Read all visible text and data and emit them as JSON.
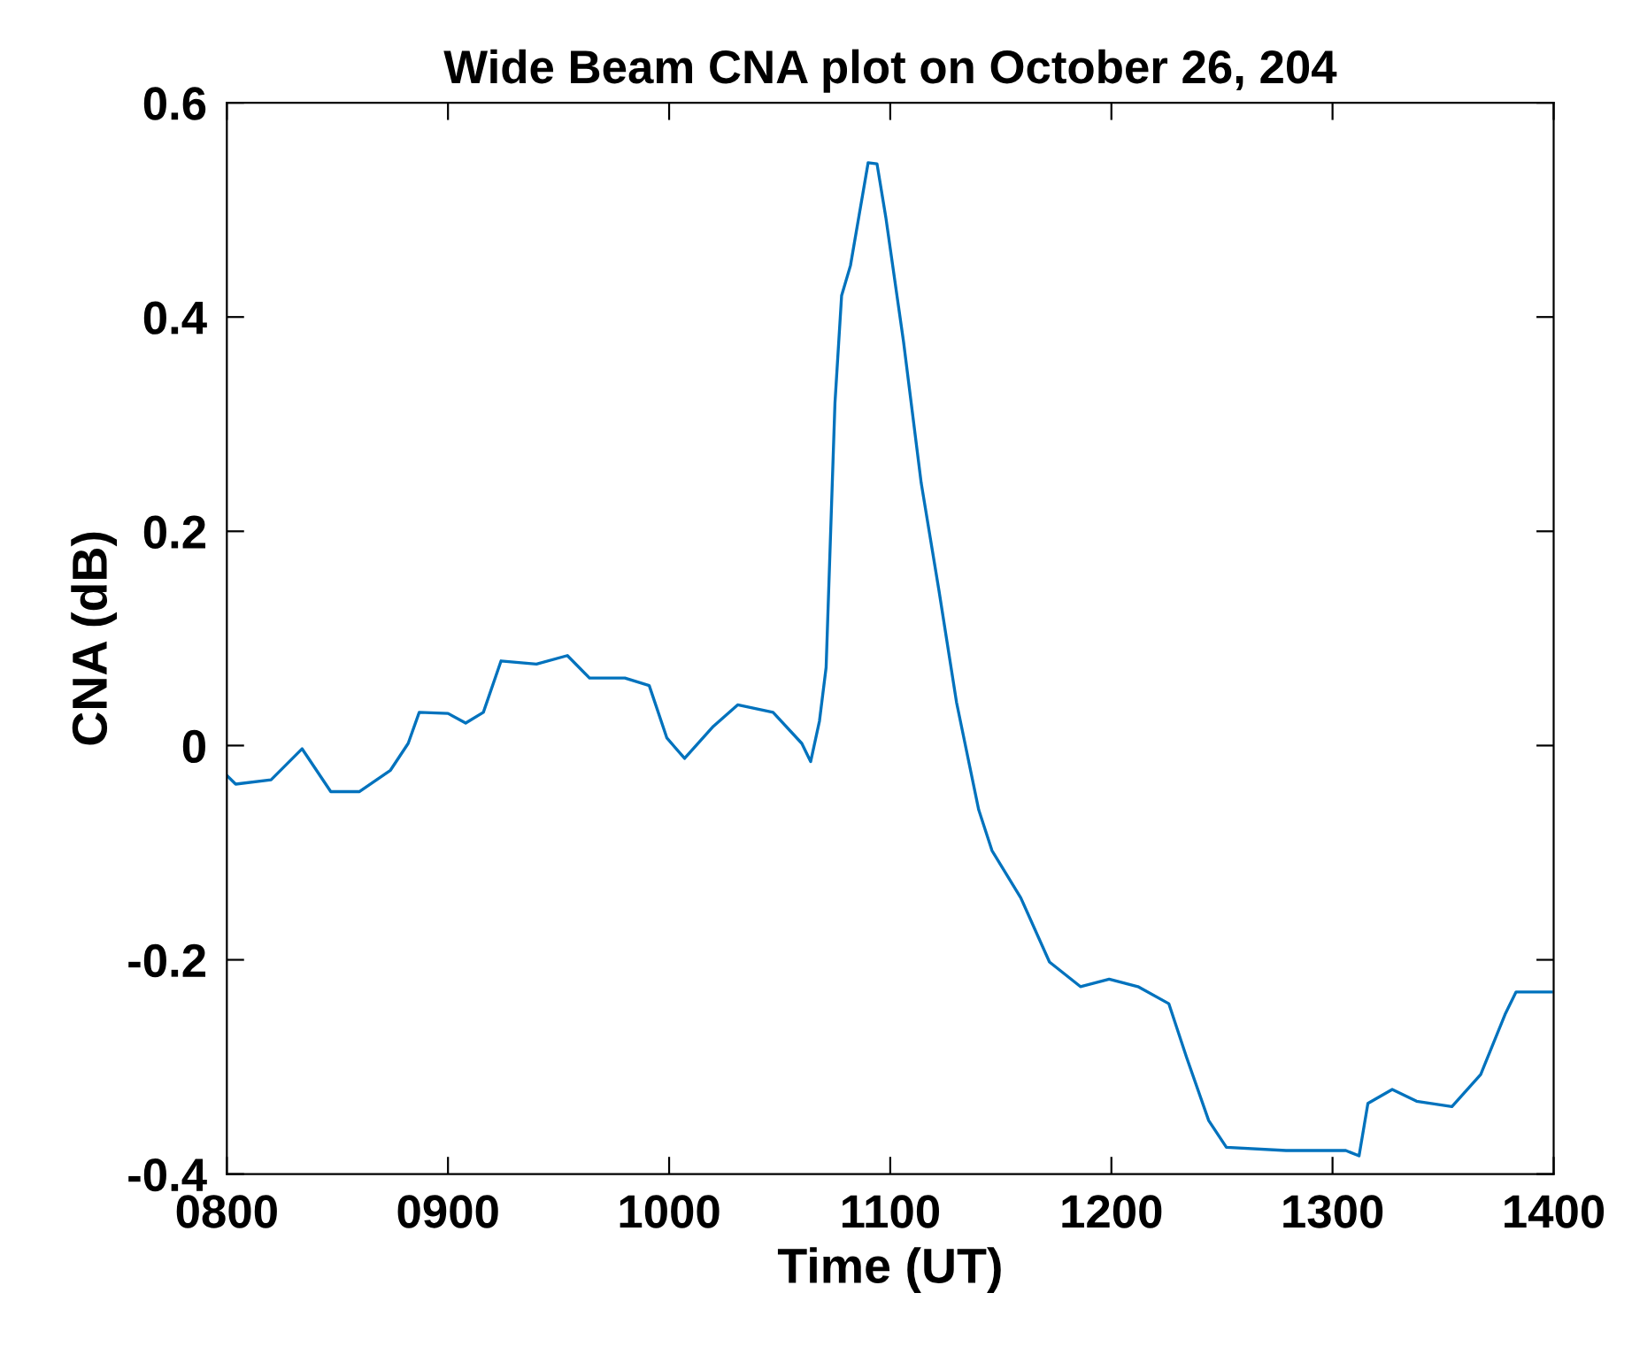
{
  "chart_data": {
    "type": "line",
    "title": "Wide Beam CNA plot on October 26, 204",
    "xlabel": "Time (UT)",
    "ylabel": "CNA (dB)",
    "x": [
      800,
      804,
      820,
      834,
      847,
      860,
      874,
      882,
      887,
      900,
      908,
      916,
      924,
      940,
      954,
      964,
      980,
      991,
      999,
      1007,
      1020,
      1031,
      1047,
      1060,
      1064,
      1068,
      1071,
      1075,
      1078,
      1082,
      1090,
      1094,
      1098,
      1106,
      1114,
      1122,
      1130,
      1140,
      1146,
      1159,
      1172,
      1186,
      1199,
      1212,
      1226,
      1234,
      1244,
      1252,
      1279,
      1306,
      1312,
      1316,
      1327,
      1338,
      1354,
      1367,
      1378,
      1383,
      1399
    ],
    "series": [
      {
        "color": "#0072bd",
        "values": [
          -0.028,
          -0.036,
          -0.032,
          -0.003,
          -0.043,
          -0.043,
          -0.023,
          0.002,
          0.031,
          0.03,
          0.021,
          0.031,
          0.079,
          0.076,
          0.084,
          0.063,
          0.063,
          0.056,
          0.007,
          -0.012,
          0.018,
          0.038,
          0.031,
          0.002,
          -0.015,
          0.023,
          0.073,
          0.32,
          0.42,
          0.448,
          0.544,
          0.543,
          0.493,
          0.377,
          0.245,
          0.145,
          0.04,
          -0.06,
          -0.098,
          -0.142,
          -0.202,
          -0.225,
          -0.218,
          -0.225,
          -0.241,
          -0.291,
          -0.35,
          -0.375,
          -0.378,
          -0.378,
          -0.383,
          -0.334,
          -0.321,
          -0.332,
          -0.337,
          -0.307,
          -0.251,
          -0.23,
          -0.23
        ]
      }
    ],
    "xlim": [
      800,
      1400
    ],
    "xticks": [
      {
        "value": 800,
        "label": "0800"
      },
      {
        "value": 900,
        "label": "0900"
      },
      1000,
      1100,
      1200,
      1300,
      1400
    ],
    "ylim": [
      -0.4,
      0.6
    ],
    "yticks": [
      {
        "value": -0.4,
        "label": "-0.4"
      },
      {
        "value": -0.2,
        "label": "-0.2"
      },
      0,
      {
        "value": 0.2,
        "label": "0.2"
      },
      {
        "value": 0.4,
        "label": "0.4"
      },
      {
        "value": 0.6,
        "label": "0.6"
      }
    ],
    "grid": false,
    "legend": false,
    "marker": "none",
    "line_style": "solid"
  }
}
